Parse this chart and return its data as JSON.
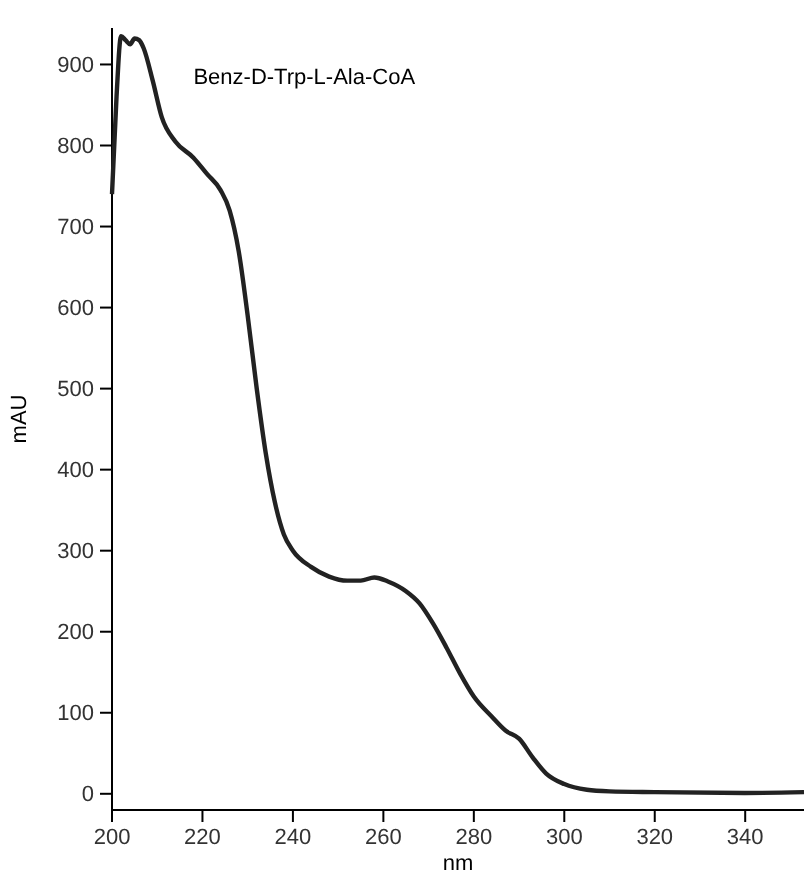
{
  "chart_data": {
    "type": "line",
    "title": "Benz-D-Trp-L-Ala-CoA",
    "xlabel": "nm",
    "ylabel": "mAU",
    "xlim": [
      200,
      353
    ],
    "xticks": [
      200,
      220,
      240,
      260,
      280,
      300,
      320,
      340
    ],
    "ylim": [
      -20,
      945
    ],
    "yticks": [
      0,
      100,
      200,
      300,
      400,
      500,
      600,
      700,
      800,
      900
    ],
    "marker": "none",
    "line_style": "solid",
    "series": [
      {
        "color": "#222222",
        "x": [
          200,
          201,
          202,
          203,
          204,
          205,
          206,
          207,
          209,
          211,
          214,
          218,
          221,
          224,
          226,
          228,
          230,
          232,
          234,
          236,
          238,
          240,
          244,
          248,
          252,
          255,
          258,
          261,
          265,
          268,
          271,
          274,
          277,
          280,
          284,
          287,
          290,
          293,
          296,
          300,
          305,
          310,
          320,
          340,
          353
        ],
        "values": [
          740,
          860,
          935,
          930,
          925,
          932,
          930,
          920,
          880,
          835,
          805,
          785,
          765,
          745,
          720,
          670,
          590,
          500,
          420,
          360,
          320,
          300,
          280,
          268,
          263,
          263,
          267,
          262,
          250,
          235,
          210,
          180,
          148,
          120,
          95,
          78,
          68,
          45,
          25,
          12,
          5,
          3,
          2,
          1,
          2
        ]
      }
    ]
  }
}
